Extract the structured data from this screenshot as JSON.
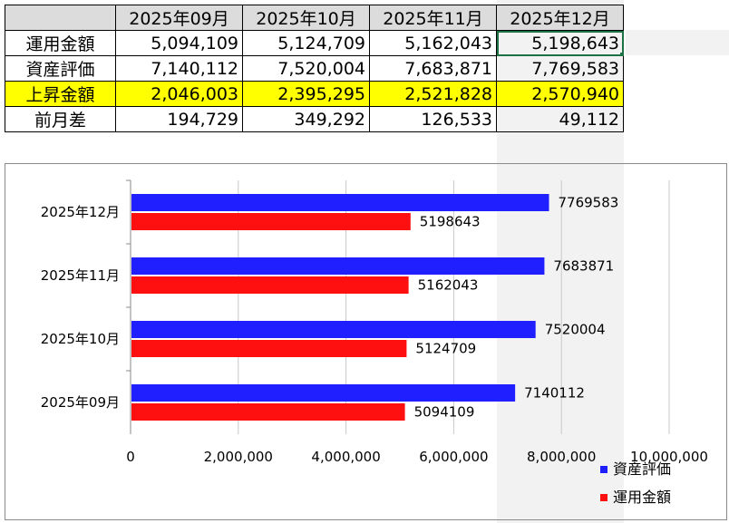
{
  "table": {
    "columns": [
      "2025年09月",
      "2025年10月",
      "2025年11月",
      "2025年12月"
    ],
    "rows": [
      {
        "label": "運用金額",
        "values": [
          "5,094,109",
          "5,124,709",
          "5,162,043",
          "5,198,643"
        ]
      },
      {
        "label": "資産評価",
        "values": [
          "7,140,112",
          "7,520,004",
          "7,683,871",
          "7,769,583"
        ]
      },
      {
        "label": "上昇金額",
        "values": [
          "2,046,003",
          "2,395,295",
          "2,521,828",
          "2,570,940"
        ]
      },
      {
        "label": "前月差",
        "values": [
          "194,729",
          "349,292",
          "126,533",
          "49,112"
        ]
      }
    ],
    "highlight_row": 2,
    "highlight_color": "#ffff00",
    "active_cell": "運用金額 / 2025年12月"
  },
  "chart_data": {
    "type": "bar",
    "orientation": "horizontal",
    "categories": [
      "2025年09月",
      "2025年10月",
      "2025年11月",
      "2025年12月"
    ],
    "series": [
      {
        "name": "資産評価",
        "color": "#1f1fff",
        "values": [
          7140112,
          7520004,
          7683871,
          7769583
        ]
      },
      {
        "name": "運用金額",
        "color": "#ff1010",
        "values": [
          5094109,
          5124709,
          5162043,
          5198643
        ]
      }
    ],
    "xlim": [
      0,
      10000000
    ],
    "xticks": [
      0,
      2000000,
      4000000,
      6000000,
      8000000,
      10000000
    ],
    "xtick_labels": [
      "0",
      "2,000,000",
      "4,000,000",
      "6,000,000",
      "8,000,000",
      "10,000,000"
    ],
    "data_labels": true,
    "grid": "vertical",
    "legend": "bottom-right"
  }
}
